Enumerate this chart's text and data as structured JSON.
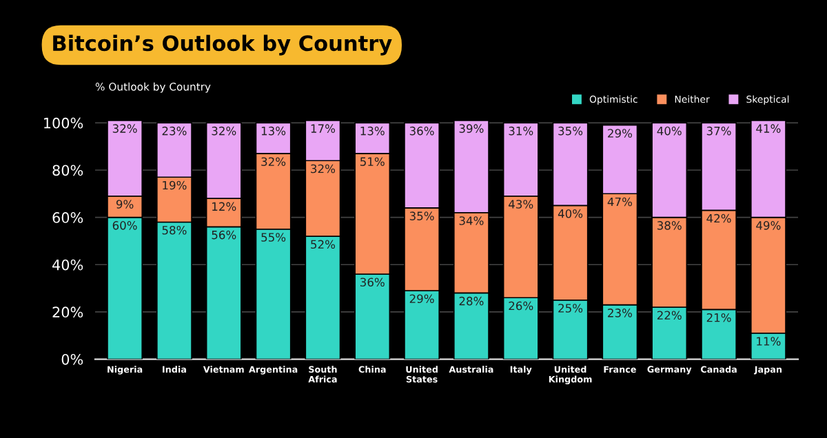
{
  "chart_data": {
    "type": "bar",
    "stacked": true,
    "title": "Bitcoin’s Outlook by Country",
    "subtitle": "% Outlook by Country",
    "categories": [
      "Nigeria",
      "India",
      "Vietnam",
      "Argentina",
      "South\nAfrica",
      "China",
      "United\nStates",
      "Australia",
      "Italy",
      "United\nKingdom",
      "France",
      "Germany",
      "Canada",
      "Japan"
    ],
    "series": [
      {
        "name": "Optimistic",
        "color": "#33d6c4",
        "values": [
          60,
          58,
          56,
          55,
          52,
          36,
          29,
          28,
          26,
          25,
          23,
          22,
          21,
          11
        ],
        "value_labels": [
          "60%",
          "58%",
          "56%",
          "55%",
          "52%",
          "36%",
          "29%",
          "28%",
          "26%",
          "25%",
          "23%",
          "22%",
          "21%",
          "11%"
        ]
      },
      {
        "name": "Neither",
        "color": "#fb8f5d",
        "values": [
          9,
          19,
          12,
          32,
          32,
          51,
          35,
          34,
          43,
          40,
          47,
          38,
          42,
          49
        ],
        "value_labels": [
          "9%",
          "19%",
          "12%",
          "32%",
          "32%",
          "51%",
          "35%",
          "34%",
          "43%",
          "40%",
          "47%",
          "38%",
          "42%",
          "49%"
        ]
      },
      {
        "name": "Skeptical",
        "color": "#e9a6f5",
        "values": [
          32,
          23,
          32,
          13,
          17,
          13,
          36,
          39,
          31,
          35,
          29,
          40,
          37,
          41
        ],
        "value_labels": [
          "32%",
          "23%",
          "32%",
          "13%",
          "17%",
          "13%",
          "36%",
          "39%",
          "31%",
          "35%",
          "29%",
          "40%",
          "37%",
          "41%"
        ]
      }
    ],
    "ylim": [
      0,
      101
    ],
    "yticks": [
      {
        "value": 0,
        "label": "0%"
      },
      {
        "value": 20,
        "label": "20%"
      },
      {
        "value": 40,
        "label": "40%"
      },
      {
        "value": 60,
        "label": "60%"
      },
      {
        "value": 80,
        "label": "80%"
      },
      {
        "value": 100,
        "label": "100%"
      }
    ],
    "grid": "y",
    "legend": "top right"
  }
}
